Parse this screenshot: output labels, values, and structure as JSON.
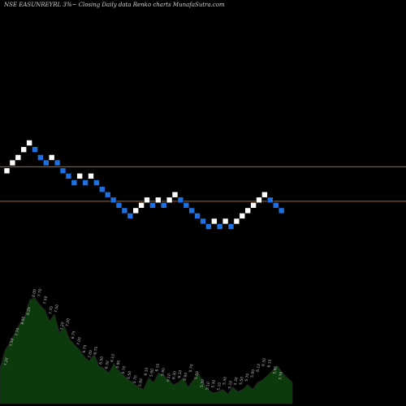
{
  "header": {
    "title": "NSE EASUNREYRL 3%~  Closing Daily data  Renko  charts MunafaSutra.com"
  },
  "chart_data": {
    "type": "renko",
    "title": "NSE EASUNREYRL 3%~  Closing Daily data  Renko  charts MunafaSutra.com",
    "box_size_pct": 3,
    "colors": {
      "background": "#000000",
      "up_brick": "#ffffff",
      "down_brick": "#1e6fe0",
      "reference_line": "#b5651d",
      "volume_area": "#0d3a0d",
      "volume_outline": "#222222",
      "label": "#bbbbbb"
    },
    "bricks": [
      {
        "dir": "up",
        "price": 7.2
      },
      {
        "dir": "up",
        "price": 7.5
      },
      {
        "dir": "up",
        "price": 7.7
      },
      {
        "dir": "up",
        "price": 8.0
      },
      {
        "dir": "up",
        "price": 8.25
      },
      {
        "dir": "down",
        "price": 8.0
      },
      {
        "dir": "down",
        "price": 7.7
      },
      {
        "dir": "down",
        "price": 7.5
      },
      {
        "dir": "up",
        "price": 7.7
      },
      {
        "dir": "down",
        "price": 7.5
      },
      {
        "dir": "down",
        "price": 7.2
      },
      {
        "dir": "down",
        "price": 7.0
      },
      {
        "dir": "down",
        "price": 6.75
      },
      {
        "dir": "up",
        "price": 7.0
      },
      {
        "dir": "down",
        "price": 6.75
      },
      {
        "dir": "up",
        "price": 7.0
      },
      {
        "dir": "down",
        "price": 6.75
      },
      {
        "dir": "down",
        "price": 6.5
      },
      {
        "dir": "down",
        "price": 6.3
      },
      {
        "dir": "down",
        "price": 6.1
      },
      {
        "dir": "down",
        "price": 5.9
      },
      {
        "dir": "down",
        "price": 5.7
      },
      {
        "dir": "down",
        "price": 5.5
      },
      {
        "dir": "up",
        "price": 5.7
      },
      {
        "dir": "up",
        "price": 5.9
      },
      {
        "dir": "up",
        "price": 6.1
      },
      {
        "dir": "down",
        "price": 5.9
      },
      {
        "dir": "up",
        "price": 6.1
      },
      {
        "dir": "down",
        "price": 5.9
      },
      {
        "dir": "up",
        "price": 6.1
      },
      {
        "dir": "up",
        "price": 6.3
      },
      {
        "dir": "down",
        "price": 6.1
      },
      {
        "dir": "down",
        "price": 5.9
      },
      {
        "dir": "down",
        "price": 5.7
      },
      {
        "dir": "down",
        "price": 5.5
      },
      {
        "dir": "down",
        "price": 5.3
      },
      {
        "dir": "down",
        "price": 5.1
      },
      {
        "dir": "up",
        "price": 5.3
      },
      {
        "dir": "down",
        "price": 5.1
      },
      {
        "dir": "up",
        "price": 5.3
      },
      {
        "dir": "down",
        "price": 5.1
      },
      {
        "dir": "up",
        "price": 5.3
      },
      {
        "dir": "up",
        "price": 5.5
      },
      {
        "dir": "up",
        "price": 5.7
      },
      {
        "dir": "up",
        "price": 5.9
      },
      {
        "dir": "up",
        "price": 6.1
      },
      {
        "dir": "up",
        "price": 6.3
      },
      {
        "dir": "down",
        "price": 6.1
      },
      {
        "dir": "down",
        "price": 5.9
      },
      {
        "dir": "down",
        "price": 5.7
      }
    ],
    "reference_lines": [
      7.35,
      6.05
    ],
    "volume_profile": [
      30,
      45,
      52,
      60,
      68,
      74,
      88,
      90,
      84,
      80,
      70,
      76,
      60,
      66,
      55,
      50,
      46,
      40,
      36,
      42,
      32,
      30,
      26,
      34,
      28,
      24,
      20,
      17,
      14,
      12,
      22,
      18,
      26,
      24,
      20,
      16,
      18,
      22,
      14,
      20,
      26,
      18,
      12,
      9,
      10,
      12,
      8,
      14,
      10,
      12,
      16,
      12,
      18,
      20,
      24,
      28,
      32,
      26,
      22,
      18
    ],
    "value_labels": [
      "7.20",
      "7.50",
      "7.70",
      "8.00",
      "8.25",
      "8.00",
      "7.70",
      "7.50",
      "7.70",
      "7.50",
      "7.20",
      "7.00",
      "6.75",
      "7.00",
      "6.75",
      "7.00",
      "6.75",
      "6.50",
      "6.30",
      "6.10",
      "5.90",
      "5.70",
      "5.50",
      "5.70",
      "5.90",
      "6.10",
      "5.90",
      "6.10",
      "5.90",
      "6.10",
      "6.30",
      "6.10",
      "5.90",
      "5.70",
      "5.50",
      "5.30",
      "5.10",
      "5.30",
      "5.10",
      "5.30",
      "5.10",
      "5.30",
      "5.50",
      "5.70",
      "5.90",
      "6.10",
      "6.30",
      "6.10",
      "5.90",
      "5.70"
    ]
  }
}
